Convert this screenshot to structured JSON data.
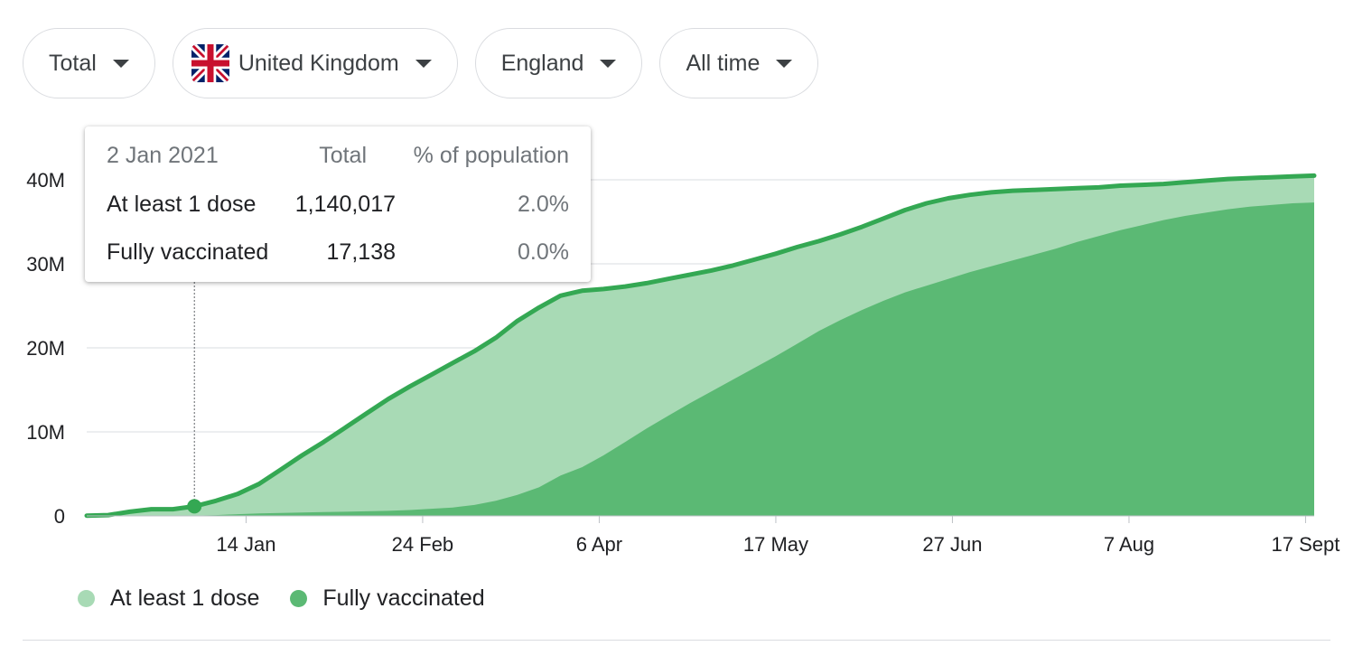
{
  "filters": [
    {
      "label": "Total"
    },
    {
      "label": "United Kingdom",
      "flag": "uk-flag-icon"
    },
    {
      "label": "England"
    },
    {
      "label": "All time"
    }
  ],
  "tooltip": {
    "date": "2 Jan 2021",
    "col_total": "Total",
    "col_pct": "% of population",
    "rows": [
      {
        "label": "At least 1 dose",
        "total": "1,140,017",
        "pct": "2.0%"
      },
      {
        "label": "Fully vaccinated",
        "total": "17,138",
        "pct": "0.0%"
      }
    ]
  },
  "legend": [
    {
      "label": "At least 1 dose",
      "color": "#a8dab5"
    },
    {
      "label": "Fully vaccinated",
      "color": "#5bb974"
    }
  ],
  "colors": {
    "line": "#34a853",
    "first_dose_area": "#a8dab5",
    "fully_vaccinated_area": "#5bb974",
    "grid": "#dadce0"
  },
  "chart_data": {
    "type": "area",
    "x_ticks": [
      "14 Jan",
      "24 Feb",
      "6 Apr",
      "17 May",
      "27 Jun",
      "7 Aug",
      "17 Sept"
    ],
    "y_ticks": [
      "0",
      "10M",
      "20M",
      "30M",
      "40M"
    ],
    "ylim": [
      0,
      40000000
    ],
    "x": [
      "2020-12-08",
      "2020-12-13",
      "2020-12-18",
      "2020-12-23",
      "2020-12-28",
      "2021-01-02",
      "2021-01-07",
      "2021-01-12",
      "2021-01-17",
      "2021-01-22",
      "2021-01-27",
      "2021-02-01",
      "2021-02-06",
      "2021-02-11",
      "2021-02-16",
      "2021-02-21",
      "2021-02-26",
      "2021-03-03",
      "2021-03-08",
      "2021-03-13",
      "2021-03-18",
      "2021-03-23",
      "2021-03-28",
      "2021-04-02",
      "2021-04-07",
      "2021-04-12",
      "2021-04-17",
      "2021-04-22",
      "2021-04-27",
      "2021-05-02",
      "2021-05-07",
      "2021-05-12",
      "2021-05-17",
      "2021-05-22",
      "2021-05-27",
      "2021-06-01",
      "2021-06-06",
      "2021-06-11",
      "2021-06-16",
      "2021-06-21",
      "2021-06-26",
      "2021-07-01",
      "2021-07-06",
      "2021-07-11",
      "2021-07-16",
      "2021-07-21",
      "2021-07-26",
      "2021-07-31",
      "2021-08-05",
      "2021-08-10",
      "2021-08-15",
      "2021-08-20",
      "2021-08-25",
      "2021-08-30",
      "2021-09-04",
      "2021-09-09",
      "2021-09-14",
      "2021-09-19"
    ],
    "series": [
      {
        "name": "At least 1 dose",
        "values": [
          0.03,
          0.1,
          0.5,
          0.8,
          0.8,
          1.14,
          1.8,
          2.6,
          3.8,
          5.5,
          7.2,
          8.8,
          10.5,
          12.2,
          13.9,
          15.4,
          16.8,
          18.2,
          19.6,
          21.2,
          23.2,
          24.8,
          26.2,
          26.8,
          27.0,
          27.3,
          27.7,
          28.2,
          28.7,
          29.2,
          29.8,
          30.5,
          31.2,
          32.0,
          32.7,
          33.5,
          34.4,
          35.4,
          36.4,
          37.2,
          37.8,
          38.2,
          38.5,
          38.7,
          38.8,
          38.9,
          39.0,
          39.1,
          39.3,
          39.4,
          39.5,
          39.7,
          39.9,
          40.1,
          40.2,
          40.3,
          40.4,
          40.5
        ]
      },
      {
        "name": "Fully vaccinated",
        "values": [
          0.0,
          0.0,
          0.0,
          0.0,
          0.0,
          0.017,
          0.1,
          0.2,
          0.3,
          0.35,
          0.4,
          0.45,
          0.5,
          0.55,
          0.6,
          0.7,
          0.85,
          1.0,
          1.3,
          1.8,
          2.5,
          3.4,
          4.8,
          5.8,
          7.2,
          8.8,
          10.4,
          11.9,
          13.4,
          14.8,
          16.2,
          17.6,
          19.0,
          20.5,
          22.0,
          23.3,
          24.5,
          25.6,
          26.6,
          27.4,
          28.2,
          29.0,
          29.7,
          30.4,
          31.1,
          31.8,
          32.6,
          33.3,
          34.0,
          34.6,
          35.2,
          35.7,
          36.1,
          36.5,
          36.8,
          37.0,
          37.2,
          37.3
        ]
      }
    ],
    "tooltip_x": "2021-01-02",
    "grid": true,
    "legend_position": "bottom-left"
  }
}
